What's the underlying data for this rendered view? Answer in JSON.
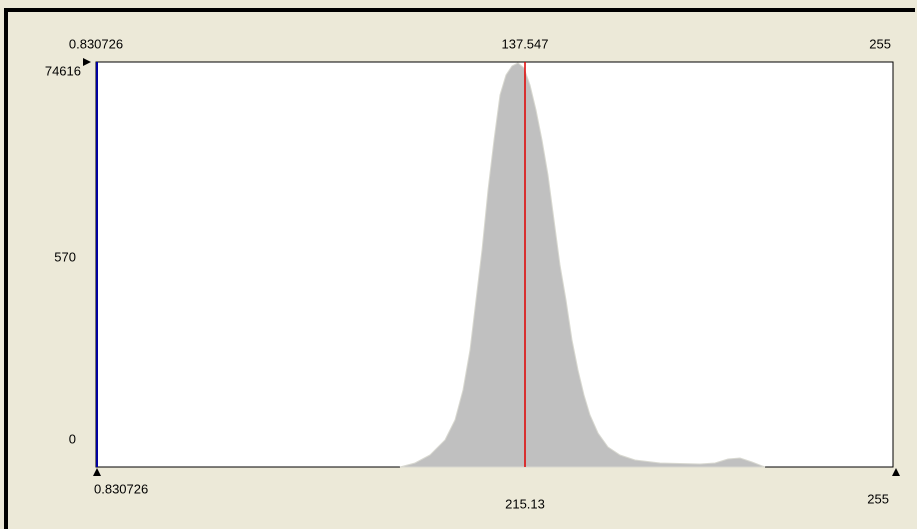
{
  "top_labels": {
    "min": "0.830726",
    "mid": "137.547",
    "max": "255"
  },
  "y_labels": [
    "74616",
    "570",
    "0"
  ],
  "bottom_labels": {
    "min": "0.830726",
    "mid": "215.13",
    "max": "255"
  }
}
